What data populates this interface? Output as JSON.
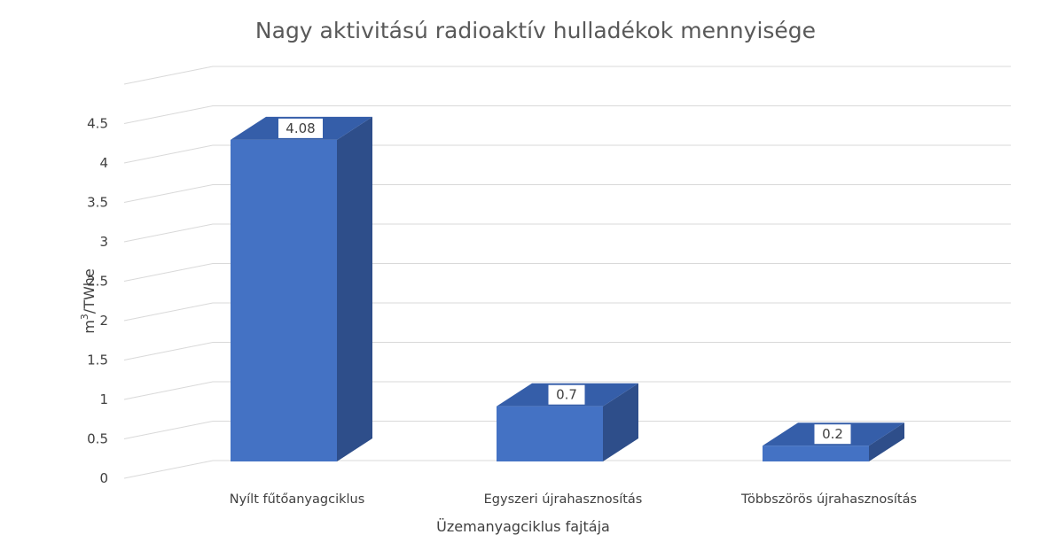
{
  "chart_data": {
    "type": "bar",
    "title": "Nagy aktivitású radioaktív hulladékok mennyisége",
    "xlabel": "Üzemanyagciklus fajtája",
    "ylabel_base": "m",
    "ylabel_sup": "3",
    "ylabel_rest": "/TWhe",
    "categories": [
      "Nyílt fűtőanyagciklus",
      "Egyszeri újrahasznosítás",
      "Többszörös újrahasznosítás"
    ],
    "values": [
      4.08,
      0.7,
      0.2
    ],
    "data_labels": [
      "4.08",
      "0.7",
      "0.2"
    ],
    "yticks": [
      "0",
      "0.5",
      "1",
      "1.5",
      "2",
      "2.5",
      "3",
      "3.5",
      "4",
      "4.5"
    ],
    "ylim": [
      0,
      5
    ],
    "grid": true,
    "legend": "none",
    "style": "3d-column",
    "colors": {
      "front": "#4472c4",
      "side": "#2e4e8a",
      "top": "#355ea9"
    }
  }
}
